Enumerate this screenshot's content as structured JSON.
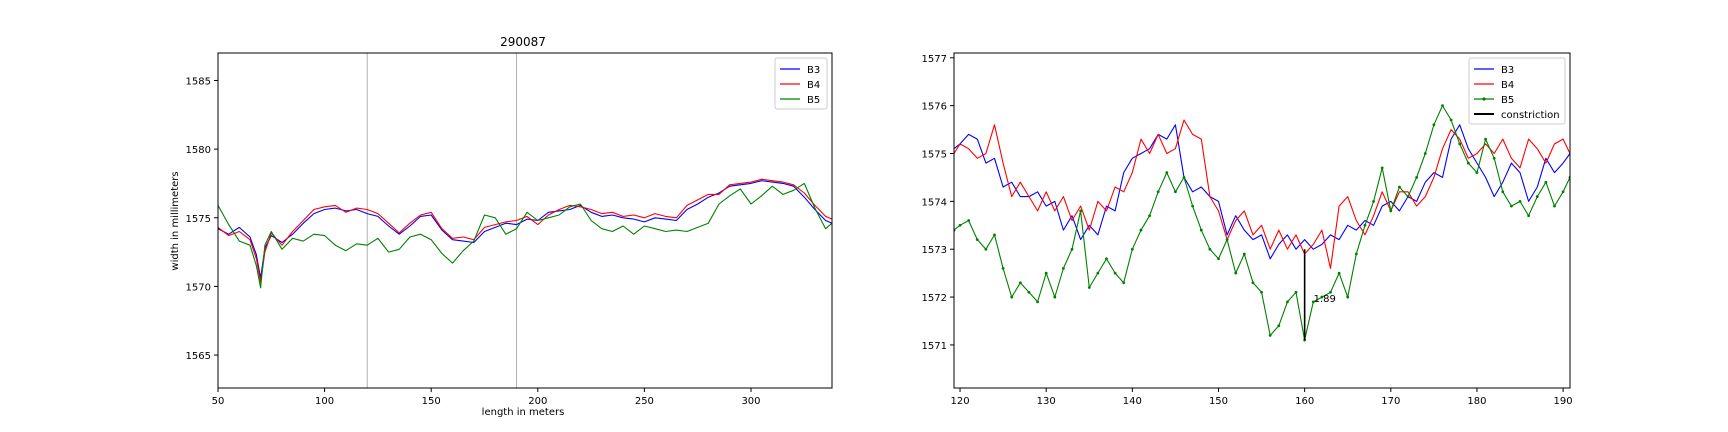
{
  "chart_data": [
    {
      "type": "line",
      "title": "290087",
      "xlabel": "length in meters",
      "ylabel": "width in millimeters",
      "xlim": [
        50,
        338
      ],
      "ylim": [
        1562.6,
        1587.0
      ],
      "xticks": [
        50,
        100,
        150,
        200,
        250,
        300
      ],
      "yticks": [
        1565,
        1570,
        1575,
        1580,
        1585
      ],
      "vlines": [
        120,
        190
      ],
      "legend_position": "upper right",
      "grid": false,
      "series": [
        {
          "name": "B3",
          "color": "#0000ff",
          "x": [
            50,
            55,
            60,
            65,
            68,
            70,
            72,
            75,
            80,
            85,
            90,
            95,
            100,
            105,
            110,
            115,
            120,
            125,
            130,
            135,
            140,
            145,
            150,
            155,
            160,
            165,
            170,
            175,
            180,
            185,
            190,
            195,
            200,
            205,
            210,
            215,
            220,
            225,
            230,
            235,
            240,
            245,
            250,
            255,
            260,
            265,
            270,
            275,
            280,
            285,
            290,
            295,
            300,
            305,
            310,
            315,
            320,
            325,
            330,
            335,
            338
          ],
          "values": [
            1574.2,
            1573.8,
            1574.3,
            1573.6,
            1572.3,
            1570.6,
            1572.8,
            1573.7,
            1573.2,
            1573.8,
            1574.6,
            1575.3,
            1575.6,
            1575.7,
            1575.5,
            1575.6,
            1575.3,
            1575.1,
            1574.4,
            1573.8,
            1574.4,
            1575.1,
            1575.2,
            1574.1,
            1573.4,
            1573.3,
            1573.2,
            1574.0,
            1574.3,
            1574.6,
            1574.5,
            1574.9,
            1574.8,
            1575.4,
            1575.5,
            1575.6,
            1575.9,
            1575.4,
            1575.1,
            1575.2,
            1575.0,
            1574.9,
            1574.7,
            1575.0,
            1574.9,
            1574.8,
            1575.6,
            1576.0,
            1576.5,
            1576.8,
            1577.3,
            1577.4,
            1577.5,
            1577.7,
            1577.6,
            1577.5,
            1577.3,
            1576.5,
            1575.6,
            1574.8,
            1574.6
          ]
        },
        {
          "name": "B4",
          "color": "#ff0000",
          "x": [
            50,
            55,
            60,
            65,
            68,
            70,
            72,
            75,
            80,
            85,
            90,
            95,
            100,
            105,
            110,
            115,
            120,
            125,
            130,
            135,
            140,
            145,
            150,
            155,
            160,
            165,
            170,
            175,
            180,
            185,
            190,
            195,
            200,
            205,
            210,
            215,
            220,
            225,
            230,
            235,
            240,
            245,
            250,
            255,
            260,
            265,
            270,
            275,
            280,
            285,
            290,
            295,
            300,
            305,
            310,
            315,
            320,
            325,
            330,
            335,
            338
          ],
          "values": [
            1574.3,
            1573.7,
            1574.0,
            1573.4,
            1572.0,
            1570.3,
            1572.5,
            1573.9,
            1573.0,
            1574.0,
            1574.8,
            1575.6,
            1575.8,
            1575.9,
            1575.4,
            1575.7,
            1575.6,
            1575.3,
            1574.6,
            1573.9,
            1574.6,
            1575.2,
            1575.4,
            1574.2,
            1573.5,
            1573.6,
            1573.4,
            1574.3,
            1574.5,
            1574.7,
            1574.8,
            1575.1,
            1574.5,
            1575.2,
            1575.6,
            1575.9,
            1575.8,
            1575.6,
            1575.3,
            1575.4,
            1575.1,
            1575.2,
            1575.0,
            1575.3,
            1575.1,
            1575.0,
            1575.9,
            1576.3,
            1576.7,
            1576.7,
            1577.4,
            1577.5,
            1577.6,
            1577.8,
            1577.7,
            1577.6,
            1577.4,
            1576.8,
            1575.9,
            1575.1,
            1574.9
          ]
        },
        {
          "name": "B5",
          "color": "#008000",
          "x": [
            50,
            55,
            60,
            65,
            68,
            70,
            72,
            75,
            80,
            85,
            90,
            95,
            100,
            105,
            110,
            115,
            120,
            125,
            130,
            135,
            140,
            145,
            150,
            155,
            160,
            165,
            170,
            175,
            180,
            185,
            190,
            195,
            200,
            205,
            210,
            215,
            220,
            225,
            230,
            235,
            240,
            245,
            250,
            255,
            260,
            265,
            270,
            275,
            280,
            285,
            290,
            295,
            300,
            305,
            310,
            315,
            320,
            325,
            330,
            335,
            338
          ],
          "values": [
            1575.9,
            1574.5,
            1573.3,
            1573.0,
            1571.5,
            1569.9,
            1573.0,
            1574.0,
            1572.7,
            1573.5,
            1573.3,
            1573.8,
            1573.7,
            1573.0,
            1572.6,
            1573.1,
            1573.0,
            1573.5,
            1572.5,
            1572.7,
            1573.6,
            1573.8,
            1573.4,
            1572.4,
            1571.7,
            1572.6,
            1573.3,
            1575.2,
            1575.0,
            1573.8,
            1574.2,
            1575.4,
            1574.8,
            1575.0,
            1575.2,
            1575.8,
            1576.0,
            1574.8,
            1574.2,
            1574.0,
            1574.4,
            1573.8,
            1574.4,
            1574.2,
            1574.0,
            1574.1,
            1574.0,
            1574.3,
            1574.6,
            1576.0,
            1576.6,
            1577.1,
            1576.0,
            1576.6,
            1577.3,
            1576.7,
            1577.0,
            1577.5,
            1575.7,
            1574.2,
            1574.6
          ]
        }
      ]
    },
    {
      "type": "line",
      "title": "",
      "xlabel": "",
      "ylabel": "",
      "xlim": [
        119.3,
        190.8
      ],
      "ylim": [
        1570.1,
        1577.1
      ],
      "xticks": [
        120,
        130,
        140,
        150,
        160,
        170,
        180,
        190
      ],
      "yticks": [
        1571,
        1572,
        1573,
        1574,
        1575,
        1576,
        1577
      ],
      "legend_position": "upper right",
      "grid": false,
      "annotation": {
        "x": 160,
        "y_bottom": 1571.1,
        "y_top": 1573.0,
        "label": "1.89"
      },
      "series": [
        {
          "name": "B3",
          "color": "#0000ff",
          "marker": "none",
          "x": [
            119.3,
            120,
            121,
            122,
            123,
            124,
            125,
            126,
            127,
            128,
            129,
            130,
            131,
            132,
            133,
            134,
            135,
            136,
            137,
            138,
            139,
            140,
            141,
            142,
            143,
            144,
            145,
            146,
            147,
            148,
            149,
            150,
            151,
            152,
            153,
            154,
            155,
            156,
            157,
            158,
            159,
            160,
            161,
            162,
            163,
            164,
            165,
            166,
            167,
            168,
            169,
            170,
            171,
            172,
            173,
            174,
            175,
            176,
            177,
            178,
            179,
            180,
            181,
            182,
            183,
            184,
            185,
            186,
            187,
            188,
            189,
            190,
            190.8
          ],
          "values": [
            1575.1,
            1575.2,
            1575.4,
            1575.3,
            1574.8,
            1574.9,
            1574.3,
            1574.4,
            1574.1,
            1574.1,
            1574.2,
            1573.9,
            1574.0,
            1573.4,
            1573.7,
            1573.2,
            1573.5,
            1573.3,
            1573.9,
            1573.8,
            1574.6,
            1574.9,
            1575.0,
            1575.1,
            1575.4,
            1575.3,
            1575.6,
            1574.5,
            1574.2,
            1574.3,
            1574.1,
            1574.0,
            1573.3,
            1573.7,
            1573.4,
            1573.2,
            1573.3,
            1572.8,
            1573.1,
            1573.3,
            1573.0,
            1573.2,
            1573.0,
            1573.1,
            1573.3,
            1573.2,
            1573.5,
            1573.4,
            1573.6,
            1573.5,
            1573.9,
            1574.0,
            1573.8,
            1574.1,
            1574.0,
            1574.4,
            1574.6,
            1574.5,
            1575.3,
            1575.6,
            1575.1,
            1574.8,
            1574.5,
            1574.1,
            1574.4,
            1574.8,
            1574.6,
            1574.0,
            1574.3,
            1574.9,
            1574.6,
            1574.8,
            1575.0
          ]
        },
        {
          "name": "B4",
          "color": "#ff0000",
          "marker": "none",
          "x": [
            119.3,
            120,
            121,
            122,
            123,
            124,
            125,
            126,
            127,
            128,
            129,
            130,
            131,
            132,
            133,
            134,
            135,
            136,
            137,
            138,
            139,
            140,
            141,
            142,
            143,
            144,
            145,
            146,
            147,
            148,
            149,
            150,
            151,
            152,
            153,
            154,
            155,
            156,
            157,
            158,
            159,
            160,
            161,
            162,
            163,
            164,
            165,
            166,
            167,
            168,
            169,
            170,
            171,
            172,
            173,
            174,
            175,
            176,
            177,
            178,
            179,
            180,
            181,
            182,
            183,
            184,
            185,
            186,
            187,
            188,
            189,
            190,
            190.8
          ],
          "values": [
            1575.0,
            1575.2,
            1575.1,
            1574.9,
            1575.0,
            1575.6,
            1574.8,
            1574.1,
            1574.4,
            1574.1,
            1573.8,
            1574.2,
            1573.8,
            1574.1,
            1573.6,
            1573.9,
            1573.4,
            1574.0,
            1573.8,
            1574.3,
            1574.2,
            1574.6,
            1575.3,
            1575.0,
            1575.4,
            1575.0,
            1575.1,
            1575.7,
            1575.4,
            1575.3,
            1574.1,
            1573.8,
            1573.2,
            1573.6,
            1573.8,
            1573.3,
            1573.5,
            1573.0,
            1573.4,
            1573.0,
            1573.3,
            1572.9,
            1573.1,
            1573.4,
            1572.6,
            1573.9,
            1574.1,
            1573.6,
            1573.3,
            1573.7,
            1574.2,
            1573.8,
            1574.2,
            1574.2,
            1573.9,
            1574.1,
            1574.5,
            1575.1,
            1575.5,
            1575.3,
            1574.9,
            1575.0,
            1575.2,
            1575.0,
            1575.3,
            1574.9,
            1574.7,
            1575.3,
            1575.1,
            1574.8,
            1575.2,
            1575.3,
            1575.0
          ]
        },
        {
          "name": "B5",
          "color": "#008000",
          "marker": "dot",
          "x": [
            119.3,
            120,
            121,
            122,
            123,
            124,
            125,
            126,
            127,
            128,
            129,
            130,
            131,
            132,
            133,
            134,
            135,
            136,
            137,
            138,
            139,
            140,
            141,
            142,
            143,
            144,
            145,
            146,
            147,
            148,
            149,
            150,
            151,
            152,
            153,
            154,
            155,
            156,
            157,
            158,
            159,
            160,
            161,
            162,
            163,
            164,
            165,
            166,
            167,
            168,
            169,
            170,
            171,
            172,
            173,
            174,
            175,
            176,
            177,
            178,
            179,
            180,
            181,
            182,
            183,
            184,
            185,
            186,
            187,
            188,
            189,
            190,
            190.8
          ],
          "values": [
            1573.4,
            1573.5,
            1573.6,
            1573.2,
            1573.0,
            1573.3,
            1572.6,
            1572.0,
            1572.3,
            1572.1,
            1571.9,
            1572.5,
            1572.0,
            1572.6,
            1573.0,
            1573.8,
            1572.2,
            1572.5,
            1572.8,
            1572.5,
            1572.3,
            1573.0,
            1573.4,
            1573.7,
            1574.2,
            1574.6,
            1574.2,
            1574.5,
            1573.9,
            1573.4,
            1573.0,
            1572.8,
            1573.2,
            1572.5,
            1572.9,
            1572.3,
            1572.1,
            1571.2,
            1571.4,
            1571.9,
            1572.1,
            1571.1,
            1571.9,
            1572.0,
            1572.1,
            1572.5,
            1572.0,
            1572.9,
            1573.5,
            1574.0,
            1574.7,
            1573.8,
            1574.3,
            1574.1,
            1574.5,
            1575.0,
            1575.6,
            1576.0,
            1575.7,
            1575.2,
            1574.8,
            1574.6,
            1575.3,
            1574.9,
            1574.2,
            1573.9,
            1574.0,
            1573.7,
            1574.1,
            1574.4,
            1573.9,
            1574.2,
            1574.5
          ]
        }
      ],
      "extra_legend": [
        {
          "name": "constriction",
          "color": "#000000"
        }
      ]
    }
  ]
}
